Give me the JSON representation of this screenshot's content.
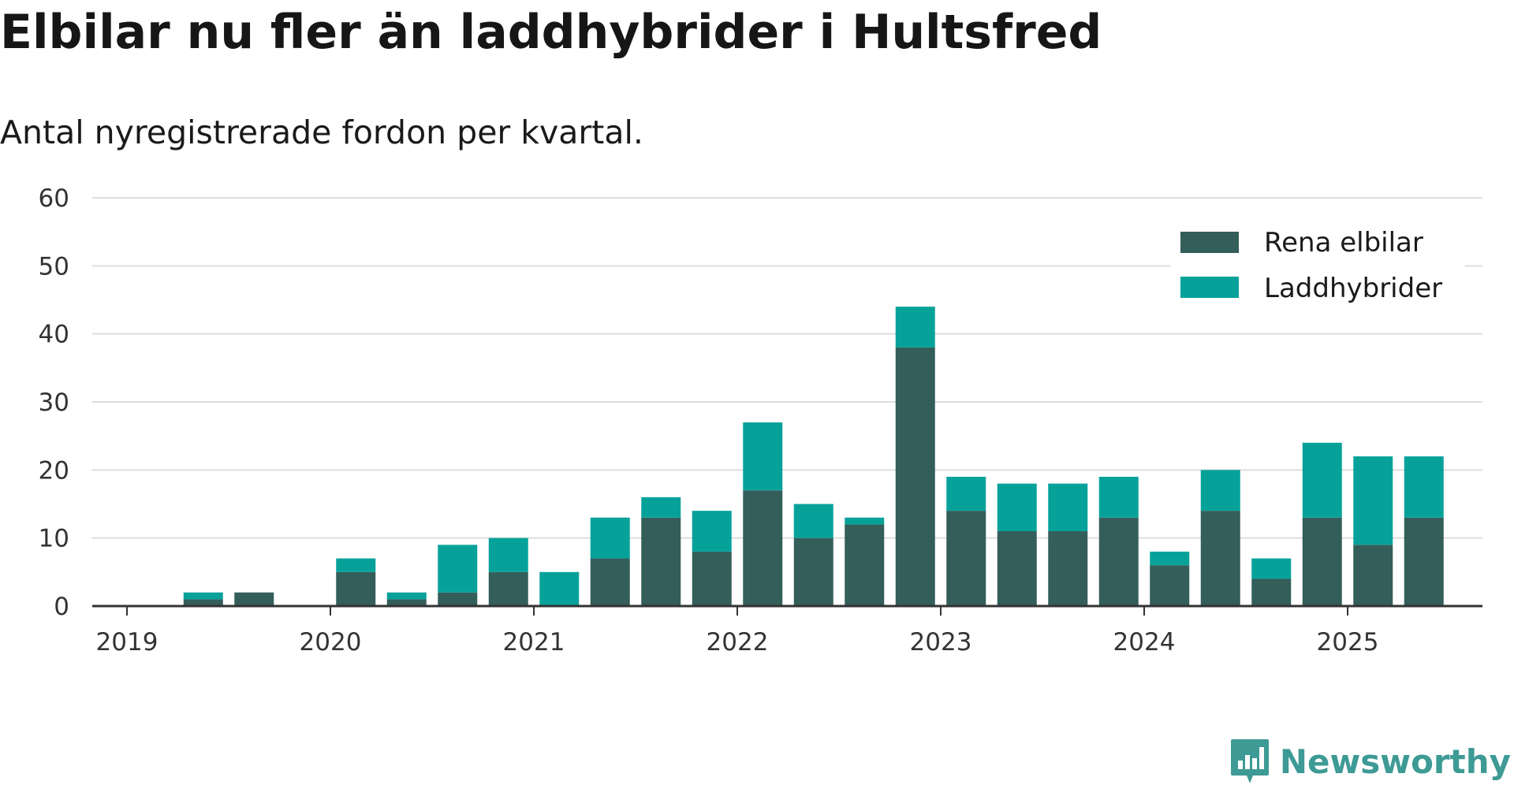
{
  "title": "Elbilar nu fler än laddhybrider i Hultsfred",
  "subtitle": "Antal nyregistrerade fordon per kvartal.",
  "brand": "Newsworthy",
  "colors": {
    "electric": "#335e5a",
    "hybrid": "#06a29a",
    "grid": "#dddddd",
    "axis": "#333333",
    "brand": "#3e9a95"
  },
  "chart_data": {
    "type": "bar",
    "stacked": true,
    "categories": [
      "2019 Q1",
      "2019 Q2",
      "2019 Q3",
      "2019 Q4",
      "2020 Q1",
      "2020 Q2",
      "2020 Q3",
      "2020 Q4",
      "2021 Q1",
      "2021 Q2",
      "2021 Q3",
      "2021 Q4",
      "2022 Q1",
      "2022 Q2",
      "2022 Q3",
      "2022 Q4",
      "2023 Q1",
      "2023 Q2",
      "2023 Q3",
      "2023 Q4",
      "2024 Q1",
      "2024 Q2",
      "2024 Q3",
      "2024 Q4",
      "2025 Q1",
      "2025 Q2"
    ],
    "series": [
      {
        "name": "Rena elbilar",
        "values": [
          0,
          1,
          2,
          0,
          5,
          1,
          2,
          5,
          0,
          7,
          13,
          8,
          17,
          10,
          12,
          38,
          14,
          11,
          11,
          13,
          6,
          14,
          4,
          13,
          9,
          13
        ]
      },
      {
        "name": "Laddhybrider",
        "values": [
          0,
          1,
          0,
          0,
          2,
          1,
          7,
          5,
          5,
          6,
          3,
          6,
          10,
          5,
          1,
          6,
          5,
          7,
          7,
          6,
          2,
          6,
          3,
          11,
          13,
          9
        ]
      }
    ],
    "x_tick_labels": [
      "2019",
      "2020",
      "2021",
      "2022",
      "2023",
      "2024",
      "2025"
    ],
    "y_ticks": [
      0,
      10,
      20,
      30,
      40,
      50,
      60
    ],
    "ylim": [
      0,
      60
    ],
    "grid": true,
    "legend_position": "top-right"
  }
}
